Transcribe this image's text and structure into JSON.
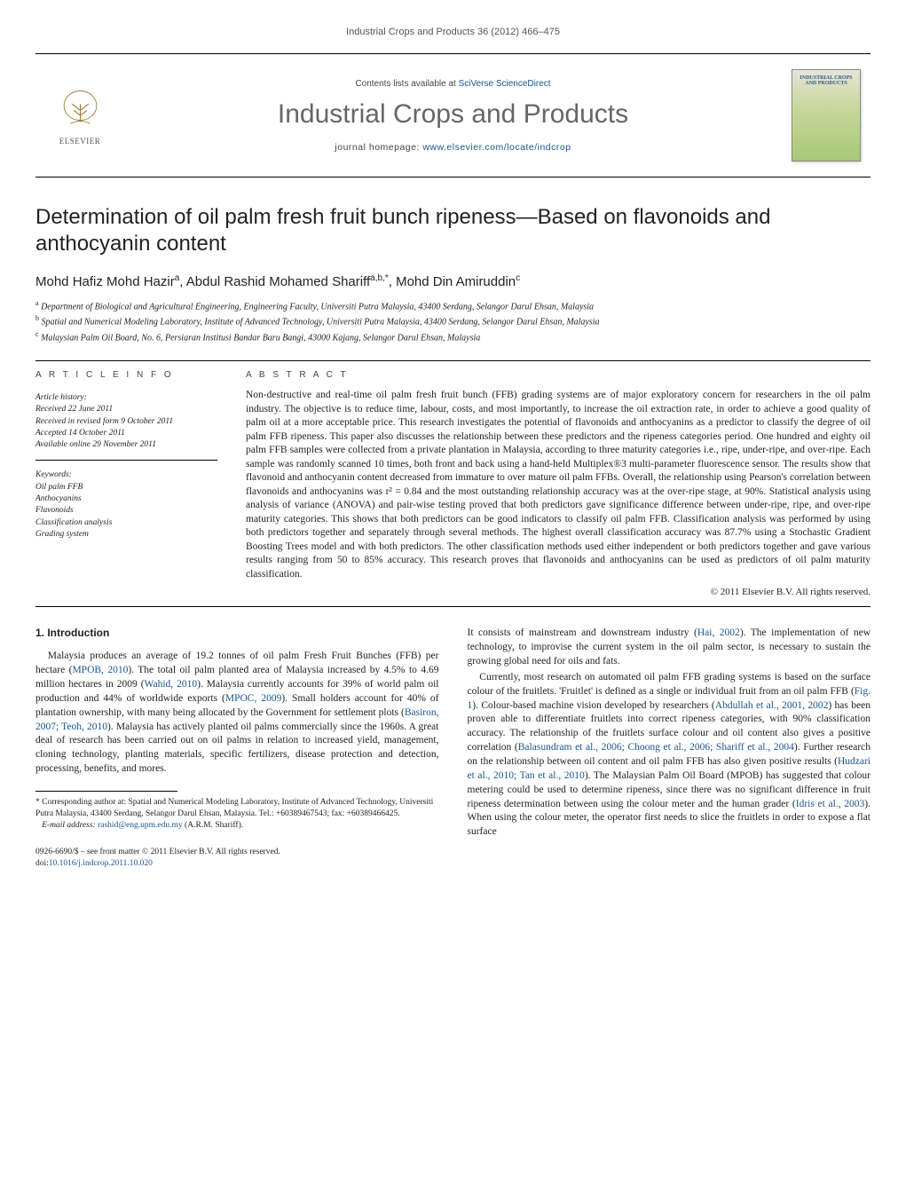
{
  "running_head": "Industrial Crops and Products 36 (2012) 466–475",
  "masthead": {
    "contents_prefix": "Contents lists available at ",
    "contents_link": "SciVerse ScienceDirect",
    "journal": "Industrial Crops and Products",
    "homepage_prefix": "journal homepage: ",
    "homepage_link": "www.elsevier.com/locate/indcrop",
    "elsevier_label": "ELSEVIER",
    "cover_label": "INDUSTRIAL CROPS AND PRODUCTS"
  },
  "title": "Determination of oil palm fresh fruit bunch ripeness—Based on flavonoids and anthocyanin content",
  "authors_html": "Mohd Hafiz Mohd Hazir<sup>a</sup>, Abdul Rashid Mohamed Shariff<sup>a,b,*</sup>, Mohd Din Amiruddin<sup>c</sup>",
  "affiliations": [
    {
      "sup": "a",
      "text": "Department of Biological and Agricultural Engineering, Engineering Faculty, Universiti Putra Malaysia, 43400 Serdang, Selangor Darul Ehsan, Malaysia"
    },
    {
      "sup": "b",
      "text": "Spatial and Numerical Modeling Laboratory, Institute of Advanced Technology, Universiti Putra Malaysia, 43400 Serdang, Selangor Darul Ehsan, Malaysia"
    },
    {
      "sup": "c",
      "text": "Malaysian Palm Oil Board, No. 6, Persiaran Institusi Bandar Baru Bangi, 43000 Kajang, Selangor Darul Ehsan, Malaysia"
    }
  ],
  "article_info_label": "A R T I C L E   I N F O",
  "abstract_label": "A B S T R A C T",
  "history": {
    "heading": "Article history:",
    "received": "Received 22 June 2011",
    "revised": "Received in revised form 9 October 2011",
    "accepted": "Accepted 14 October 2011",
    "online": "Available online 29 November 2011"
  },
  "keywords_label": "Keywords:",
  "keywords": [
    "Oil palm FFB",
    "Anthocyanins",
    "Flavonoids",
    "Classification analysis",
    "Grading system"
  ],
  "abstract": "Non-destructive and real-time oil palm fresh fruit bunch (FFB) grading systems are of major exploratory concern for researchers in the oil palm industry. The objective is to reduce time, labour, costs, and most importantly, to increase the oil extraction rate, in order to achieve a good quality of palm oil at a more acceptable price. This research investigates the potential of flavonoids and anthocyanins as a predictor to classify the degree of oil palm FFB ripeness. This paper also discusses the relationship between these predictors and the ripeness categories period. One hundred and eighty oil palm FFB samples were collected from a private plantation in Malaysia, according to three maturity categories i.e., ripe, under-ripe, and over-ripe. Each sample was randomly scanned 10 times, both front and back using a hand-held Multiplex®3 multi-parameter fluorescence sensor. The results show that flavonoid and anthocyanin content decreased from immature to over mature oil palm FFBs. Overall, the relationship using Pearson's correlation between flavonoids and anthocyanins was r² = 0.84 and the most outstanding relationship accuracy was at the over-ripe stage, at 90%. Statistical analysis using analysis of variance (ANOVA) and pair-wise testing proved that both predictors gave significance difference between under-ripe, ripe, and over-ripe maturity categories. This shows that both predictors can be good indicators to classify oil palm FFB. Classification analysis was performed by using both predictors together and separately through several methods. The highest overall classification accuracy was 87.7% using a Stochastic Gradient Boosting Trees model and with both predictors. The other classification methods used either independent or both predictors together and gave various results ranging from 50 to 85% accuracy. This research proves that flavonoids and anthocyanins can be used as predictors of oil palm maturity classification.",
  "copyright_line": "© 2011 Elsevier B.V. All rights reserved.",
  "intro_heading": "1. Introduction",
  "body_left": "Malaysia produces an average of 19.2 tonnes of oil palm Fresh Fruit Bunches (FFB) per hectare (<a href='#'>MPOB, 2010</a>). The total oil palm planted area of Malaysia increased by 4.5% to 4.69 million hectares in 2009 (<a href='#'>Wahid, 2010</a>). Malaysia currently accounts for 39% of world palm oil production and 44% of worldwide exports (<a href='#'>MPOC, 2009</a>). Small holders account for 40% of plantation ownership, with many being allocated by the Government for settlement plots (<a href='#'>Basiron, 2007; Teoh, 2010</a>). Malaysia has actively planted oil palms commercially since the 1960s. A great deal of research has been carried out on oil palms in relation to increased yield, management, cloning technology, planting materials, specific fertilizers, disease protection and detection, processing, benefits, and mores.",
  "body_right_1": "It consists of mainstream and downstream industry (<a href='#'>Hai, 2002</a>). The implementation of new technology, to improvise the current system in the oil palm sector, is necessary to sustain the growing global need for oils and fats.",
  "body_right_2": "Currently, most research on automated oil palm FFB grading systems is based on the surface colour of the fruitlets. 'Fruitlet' is defined as a single or individual fruit from an oil palm FFB (<a href='#'>Fig. 1</a>). Colour-based machine vision developed by researchers (<a href='#'>Abdullah et al., 2001, 2002</a>) has been proven able to differentiate fruitlets into correct ripeness categories, with 90% classification accuracy. The relationship of the fruitlets surface colour and oil content also gives a positive correlation (<a href='#'>Balasundram et al., 2006; Choong et al., 2006; Shariff et al., 2004</a>). Further research on the relationship between oil content and oil palm FFB has also given positive results (<a href='#'>Hudzari et al., 2010; Tan et al., 2010</a>). The Malaysian Palm Oil Board (MPOB) has suggested that colour metering could be used to determine ripeness, since there was no significant difference in fruit ripeness determination between using the colour meter and the human grader (<a href='#'>Idris et al., 2003</a>). When using the colour meter, the operator first needs to slice the fruitlets in order to expose a flat surface",
  "corresp": {
    "label": "* Corresponding author at: Spatial and Numerical Modeling Laboratory, Institute of Advanced Technology, Universiti Putra Malaysia, 43400 Serdang, Selangor Darul Ehsan, Malaysia. Tel.: +60389467543; fax: +60389466425.",
    "email_label": "E-mail address: ",
    "email": "rashid@eng.upm.edu.my",
    "email_suffix": " (A.R.M. Shariff)."
  },
  "footer": {
    "issn_line": "0926-6690/$ – see front matter © 2011 Elsevier B.V. All rights reserved.",
    "doi_prefix": "doi:",
    "doi": "10.1016/j.indcrop.2011.10.020"
  },
  "colors": {
    "link": "#1a5490",
    "text": "#222",
    "muted": "#555",
    "rule": "#000"
  }
}
